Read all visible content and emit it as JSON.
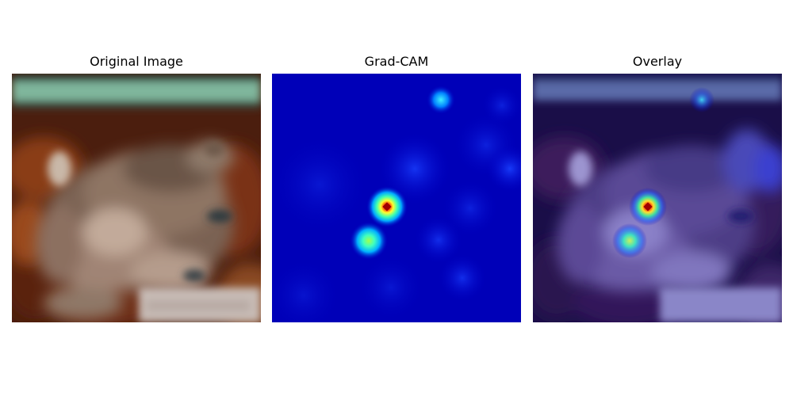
{
  "figure": {
    "panels": [
      {
        "title": "Original Image"
      },
      {
        "title": "Grad-CAM"
      },
      {
        "title": "Overlay"
      }
    ]
  },
  "colors": {
    "heatmap_low": "#0000c8",
    "heatmap_mid": "#00c8ff",
    "heatmap_peak": "#d00000",
    "frog_brown": "#9a7a66",
    "background_rust": "#8a3d16",
    "leaf_green": "#7fb69c"
  }
}
